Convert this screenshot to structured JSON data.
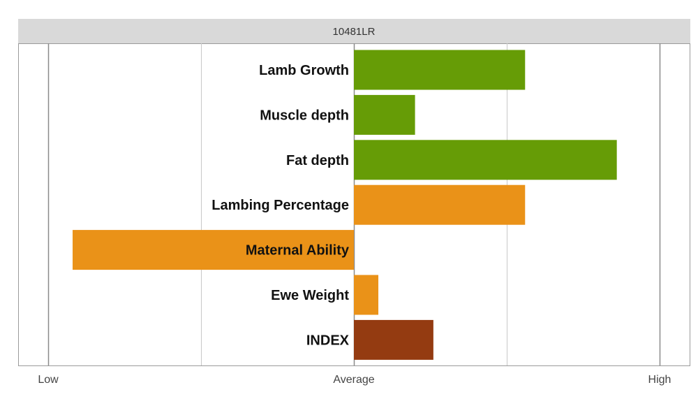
{
  "chart_data": {
    "type": "bar",
    "orientation": "horizontal",
    "title": "10481LR",
    "x_tick_labels": [
      "Low",
      "Average",
      "High"
    ],
    "xlim": [
      -1,
      1
    ],
    "grid": true,
    "categories": [
      "Lamb Growth",
      "Muscle depth",
      "Fat depth",
      "Lambing Percentage",
      "Maternal Ability",
      "Ewe Weight",
      "INDEX"
    ],
    "values": [
      0.56,
      0.2,
      0.86,
      0.56,
      -0.92,
      0.08,
      0.26
    ],
    "colors": [
      "#669c06",
      "#669c06",
      "#669c06",
      "#ea9218",
      "#ea9218",
      "#ea9218",
      "#943b11"
    ]
  }
}
